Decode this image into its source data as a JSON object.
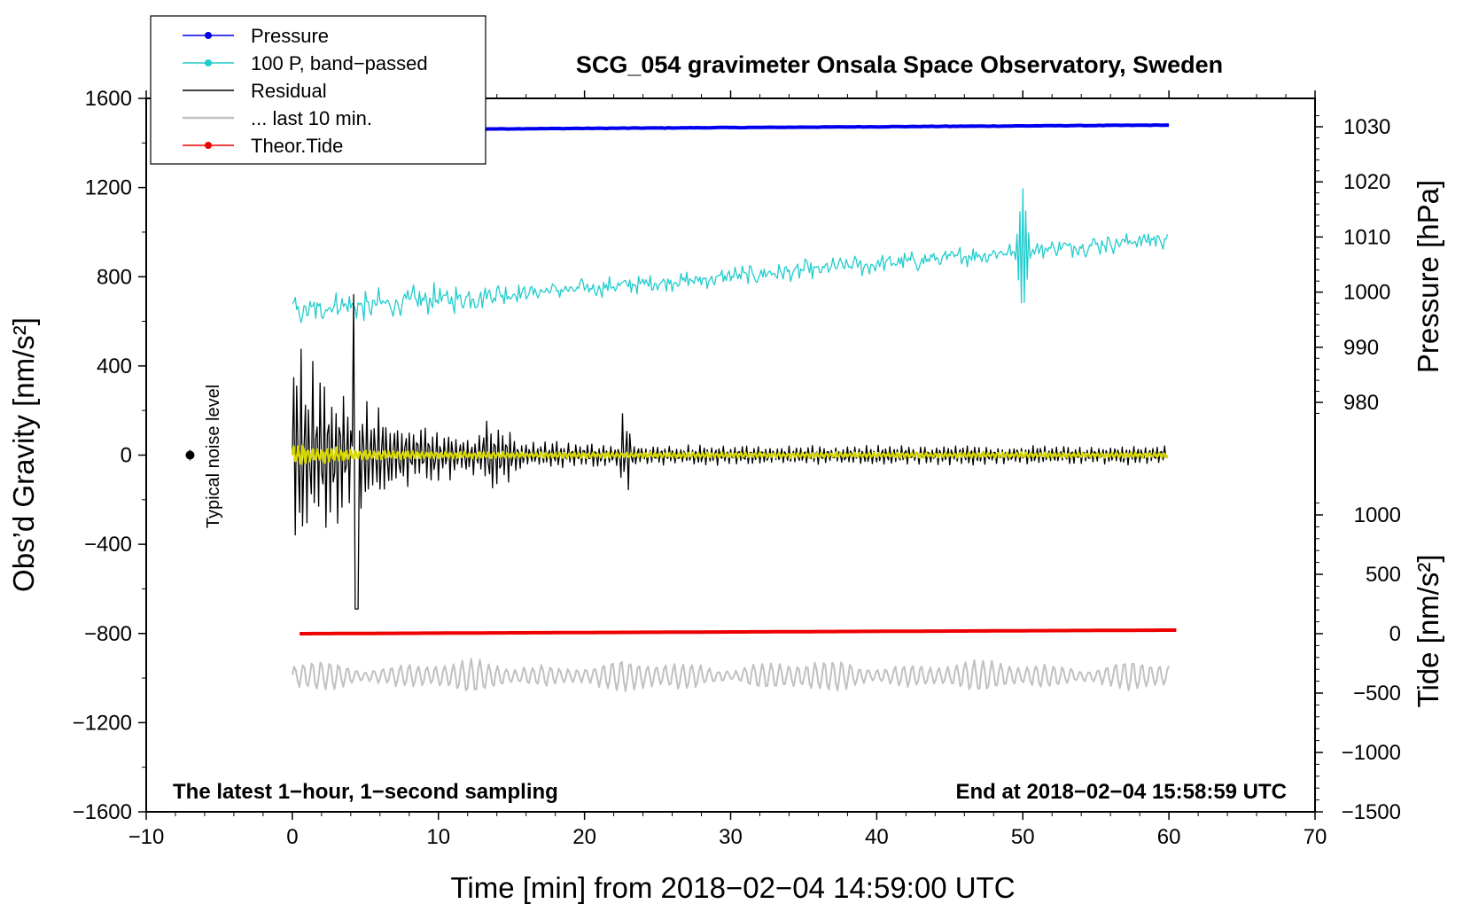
{
  "chart_data": {
    "type": "line",
    "title": "SCG_054 gravimeter Onsala Space Observatory, Sweden",
    "xlabel": "Time [min] from 2018−02−04 14:59:00 UTC",
    "ylabel_left": "Obs’d Gravity [nm/s²]",
    "ylabel_right_pressure": "Pressure [hPa]",
    "ylabel_right_tide": "Tide [nm/s²]",
    "xlim": [
      -10,
      70
    ],
    "ylim_left": [
      -1600,
      1600
    ],
    "x_ticks": [
      "−10",
      "0",
      "10",
      "20",
      "30",
      "40",
      "50",
      "60",
      "70"
    ],
    "y_ticks_left": [
      "1600",
      "1200",
      "800",
      "400",
      "0",
      "−400",
      "−800",
      "−1200",
      "−1600"
    ],
    "pressure_ticks": [
      "1030",
      "1020",
      "1010",
      "1000",
      "990",
      "980"
    ],
    "tide_ticks": [
      "1000",
      "500",
      "0",
      "−500",
      "−1000",
      "−1500"
    ],
    "annotations": {
      "bottom_left": "The latest 1−hour, 1−second sampling",
      "bottom_right": "End at 2018−02−04 15:58:59 UTC",
      "noise_label": "Typical noise level"
    },
    "legend": [
      {
        "label": "Pressure",
        "color": "#0000ee",
        "marker": true
      },
      {
        "label": "100 P, band−passed",
        "color": "#22cccc",
        "marker": true
      },
      {
        "label": "Residual",
        "color": "#000000",
        "marker": false
      },
      {
        "label": "... last 10 min.",
        "color": "#c0c0c0",
        "marker": false
      },
      {
        "label": "Theor.Tide",
        "color": "#ee0000",
        "marker": true
      }
    ],
    "series": [
      {
        "name": "Pressure",
        "color": "#0000ee",
        "axis": "pressure_hPa",
        "start": 1029.4,
        "end": 1030.3,
        "x_range": [
          0,
          60
        ]
      },
      {
        "name": "100 P, band-passed",
        "color": "#22cccc",
        "axis": "gravity_nm_s2",
        "trend_start": 650,
        "trend_end": 975,
        "noise_amp": 60,
        "spike_at": 50,
        "spike_range": [
          560,
          1110
        ],
        "x_range": [
          0,
          60
        ]
      },
      {
        "name": "Residual",
        "color": "#000000",
        "axis": "gravity_nm_s2",
        "early_amp": 550,
        "min": -690,
        "max": 720,
        "late_amp": 45,
        "x_range": [
          0,
          60
        ]
      },
      {
        "name": "Residual (yellow overlay)",
        "color": "#d8d800",
        "axis": "gravity_nm_s2",
        "early_amp": 55,
        "late_amp": 12,
        "x_range": [
          0,
          60
        ]
      },
      {
        "name": "... last 10 min.",
        "color": "#c0c0c0",
        "axis": "gravity_nm_s2",
        "center": -990,
        "amp": 45,
        "x_range": [
          0,
          60
        ]
      },
      {
        "name": "Theor.Tide",
        "color": "#ee0000",
        "axis": "tide_nm_s2",
        "start": 0,
        "end": 30,
        "x_range": [
          0.5,
          60.5
        ]
      }
    ],
    "noise_marker": {
      "x": -7,
      "y": 0,
      "err": 25
    }
  }
}
